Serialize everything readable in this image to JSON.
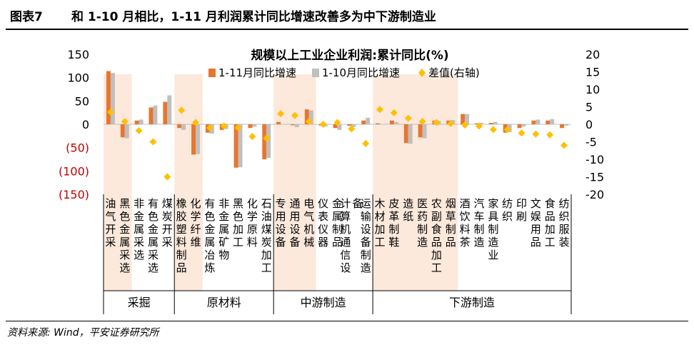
{
  "figure": {
    "number": "图表7",
    "title": "和 1-10 月相比，1-11 月利润累计同比增速改善多为中下游制造业",
    "source": "资料来源: Wind，平安证券研究所"
  },
  "chart_data": {
    "type": "bar",
    "title": "规模以上工业企业利润:累计同比(%)",
    "categories": [
      "油气开采",
      "黑色金属采选",
      "非金属采选",
      "有色金属采选",
      "煤炭开采",
      "橡胶塑料制品",
      "化学纤维",
      "有色金属冶炼",
      "非金属矿物",
      "黑色加工",
      "化学原料",
      "石油煤炭加工",
      "专用设备",
      "通用设备",
      "电气机械",
      "仪表仪器",
      "金属制品",
      "计算机通信设备",
      "运输设备制造",
      "木材加工",
      "皮革制鞋",
      "造纸",
      "医药制造",
      "农副食品加工",
      "烟草制品",
      "酒饮料茶",
      "汽车制造",
      "家具制造业",
      "纺织",
      "印刷",
      "文娱用品",
      "食品加工",
      "纺织服装"
    ],
    "series": [
      {
        "name": "1-11月同比增速",
        "type": "bar",
        "axis": "left",
        "color": "#E8762C",
        "values": [
          114,
          -28,
          8,
          36,
          48,
          -8,
          -65,
          -18,
          -12,
          -93,
          -8,
          -75,
          5,
          -2,
          32,
          -3,
          -8,
          -3,
          8,
          2,
          8,
          -40,
          -28,
          8,
          8,
          22,
          2,
          3,
          -18,
          -8,
          8,
          8,
          -8
        ]
      },
      {
        "name": "1-10月同比增速",
        "type": "bar",
        "axis": "left",
        "color": "#BFBFBF",
        "values": [
          110,
          -30,
          10,
          40,
          62,
          -12,
          -64,
          -20,
          -10,
          -92,
          -5,
          -72,
          0,
          -6,
          30,
          -5,
          -12,
          -6,
          14,
          0,
          5,
          -42,
          -30,
          7,
          9,
          22,
          3,
          5,
          -17,
          -5,
          10,
          11,
          -3
        ]
      },
      {
        "name": "差值(右轴)",
        "type": "scatter",
        "axis": "right",
        "color": "#FFC000",
        "values": [
          3.5,
          0.8,
          -1.8,
          -5.0,
          -15.0,
          4.0,
          0.5,
          -1.0,
          -0.5,
          -1.0,
          -3.5,
          -4.0,
          3.0,
          2.5,
          0.8,
          0.0,
          0.5,
          -1.3,
          -5.5,
          4.2,
          3.3,
          1.7,
          0.8,
          0.5,
          0.2,
          -0.2,
          -0.5,
          -1.5,
          -1.5,
          -2.5,
          -2.8,
          -3.0,
          -6.0
        ]
      }
    ],
    "left_axis": {
      "min": -150,
      "max": 150,
      "step": 50,
      "tick_labels": [
        "150",
        "100",
        "50",
        "0",
        "(50)",
        "(100)",
        "(150)"
      ],
      "negative_color": "#C00000"
    },
    "right_axis": {
      "min": -20,
      "max": 20,
      "step": 5,
      "tick_labels": [
        "20",
        "15",
        "10",
        "5",
        "0",
        "-5",
        "-10",
        "-15",
        "-20"
      ]
    },
    "groups": [
      {
        "name": "采掘",
        "start": 0,
        "end": 4,
        "highlight_start": 0,
        "highlight_end": 1
      },
      {
        "name": "原材料",
        "start": 5,
        "end": 11,
        "highlight_start": 5,
        "highlight_end": 6
      },
      {
        "name": "中游制造",
        "start": 12,
        "end": 18,
        "highlight_start": 12,
        "highlight_end": 14
      },
      {
        "name": "下游制造",
        "start": 19,
        "end": 32,
        "highlight_start": 19,
        "highlight_end": 24
      }
    ],
    "highlight_color": "#FCE9DC",
    "legend_position": "top-right"
  }
}
